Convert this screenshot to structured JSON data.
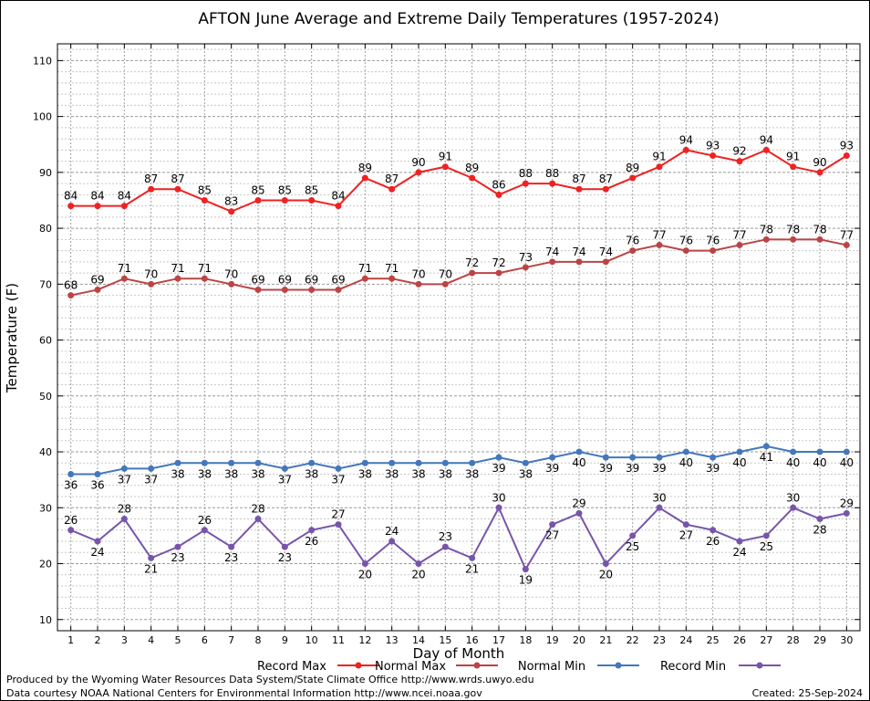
{
  "chart_data": {
    "type": "line",
    "title": "AFTON June Average and Extreme Daily Temperatures (1957-2024)",
    "xlabel": "Day of Month",
    "ylabel": "Temperature (F)",
    "x": [
      1,
      2,
      3,
      4,
      5,
      6,
      7,
      8,
      9,
      10,
      11,
      12,
      13,
      14,
      15,
      16,
      17,
      18,
      19,
      20,
      21,
      22,
      23,
      24,
      25,
      26,
      27,
      28,
      29,
      30
    ],
    "xlim": [
      0.5,
      30.5
    ],
    "ylim": [
      8,
      113
    ],
    "yticks": [
      10,
      20,
      30,
      40,
      50,
      60,
      70,
      80,
      90,
      100,
      110
    ],
    "grid": true,
    "legend_position": "bottom",
    "series": [
      {
        "name": "Record Max",
        "color": "#ee2222",
        "label_position": "above",
        "values": [
          84,
          84,
          84,
          87,
          87,
          85,
          83,
          85,
          85,
          85,
          84,
          89,
          87,
          90,
          91,
          89,
          86,
          88,
          88,
          87,
          87,
          89,
          91,
          94,
          93,
          92,
          94,
          91,
          90,
          93
        ]
      },
      {
        "name": "Normal Max",
        "color": "#bb4444",
        "label_position": "above",
        "values": [
          68,
          69,
          71,
          70,
          71,
          71,
          70,
          69,
          69,
          69,
          69,
          71,
          71,
          70,
          70,
          72,
          72,
          73,
          74,
          74,
          74,
          76,
          77,
          76,
          76,
          77,
          78,
          78,
          78,
          77
        ]
      },
      {
        "name": "Normal Min",
        "color": "#4477bb",
        "label_position": "below",
        "values": [
          36,
          36,
          37,
          37,
          38,
          38,
          38,
          38,
          37,
          38,
          37,
          38,
          38,
          38,
          38,
          38,
          39,
          38,
          39,
          40,
          39,
          39,
          39,
          40,
          39,
          40,
          41,
          40,
          40,
          40
        ]
      },
      {
        "name": "Record Min",
        "color": "#7755aa",
        "label_position": "alternate",
        "values": [
          26,
          24,
          28,
          21,
          23,
          26,
          23,
          28,
          23,
          26,
          27,
          20,
          24,
          20,
          23,
          21,
          30,
          19,
          27,
          29,
          20,
          25,
          30,
          27,
          26,
          24,
          25,
          30,
          28,
          29
        ]
      }
    ]
  },
  "footer": {
    "credit_line1": "Produced by the Wyoming Water Resources Data System/State Climate Office http://www.wrds.uwyo.edu",
    "credit_line2": "Data courtesy NOAA National Centers for Environmental Information http://www.ncei.noaa.gov",
    "created": "Created:  25-Sep-2024"
  }
}
